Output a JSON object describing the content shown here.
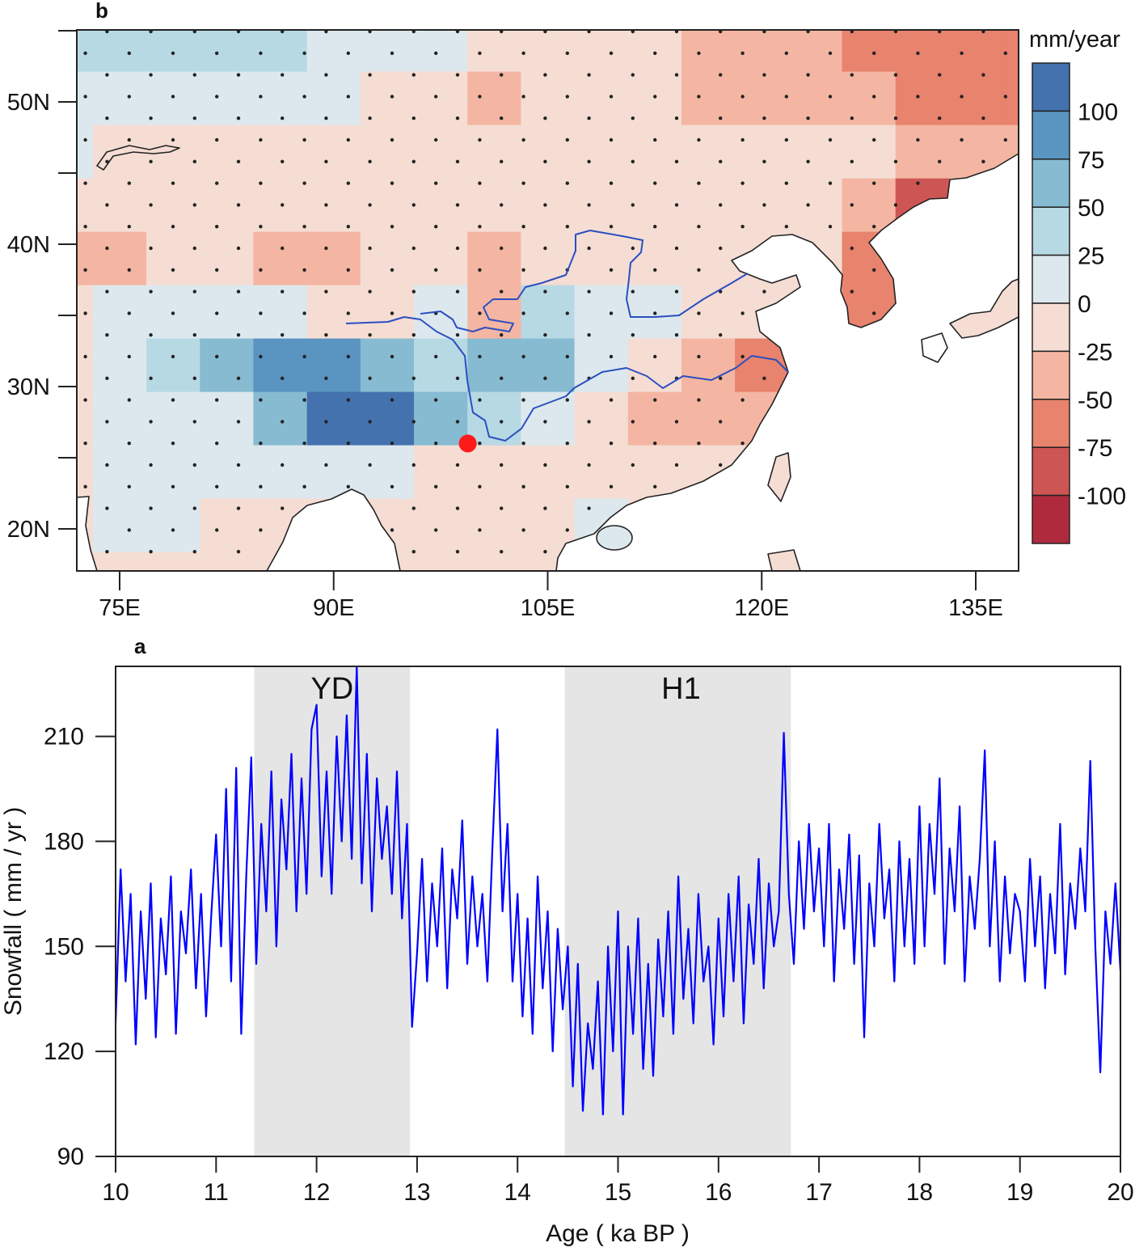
{
  "panels": {
    "map_label": "b",
    "series_label": "a"
  },
  "chart_data": [
    {
      "type": "heatmap",
      "panel": "b",
      "lon_ticks": [
        75,
        90,
        105,
        120,
        135
      ],
      "lon_tick_labels": [
        "75E",
        "90E",
        "105E",
        "120E",
        "135E"
      ],
      "lat_ticks": [
        50,
        40,
        30,
        20
      ],
      "lat_tick_labels": [
        "50N",
        "40N",
        "30N",
        "20N"
      ],
      "lat_minor_ticks": [
        55,
        45,
        35,
        25
      ],
      "extent": {
        "lon": [
          72,
          138
        ],
        "lat": [
          17,
          55
        ]
      },
      "colorbar": {
        "title": "mm/year",
        "tick_labels": [
          "100",
          "75",
          "50",
          "25",
          "0",
          "-25",
          "-50",
          "-75",
          "-100"
        ],
        "colors": [
          "#4372ae",
          "#5a94c1",
          "#86bbd2",
          "#b7d9e4",
          "#dde8ee",
          "#f5ddd4",
          "#f4b6a2",
          "#e8836e",
          "#cd5655",
          "#b02a3e"
        ]
      },
      "grid": {
        "cell_size_deg": 3.75,
        "lon_centers": [
          71.25,
          75,
          78.75,
          82.5,
          86.25,
          90,
          93.75,
          97.5,
          101.25,
          105,
          108.75,
          112.5,
          116.25,
          120,
          123.75,
          127.5,
          131.25,
          135,
          138.75
        ],
        "lat_centers": [
          54.0,
          50.25,
          46.5,
          42.75,
          39.0,
          35.25,
          31.5,
          27.75,
          24.0,
          20.25,
          16.5
        ],
        "values": [
          [
            37,
            37,
            37,
            37,
            37,
            12,
            12,
            12,
            -12,
            -12,
            -12,
            -12,
            -37,
            -37,
            -37,
            -62,
            -62,
            -62,
            -62
          ],
          [
            12,
            12,
            12,
            12,
            12,
            12,
            -12,
            -12,
            -37,
            -12,
            -12,
            -12,
            -37,
            -37,
            -37,
            -37,
            -62,
            -62,
            -62
          ],
          [
            12,
            -12,
            -12,
            -12,
            -12,
            -12,
            -12,
            -12,
            -12,
            -12,
            -12,
            -12,
            -12,
            -12,
            -12,
            -12,
            -37,
            -37,
            -37
          ],
          [
            -12,
            -12,
            -12,
            -12,
            -12,
            -12,
            -12,
            -12,
            -12,
            -12,
            -12,
            -12,
            -12,
            -12,
            -12,
            -37,
            -87,
            null,
            null
          ],
          [
            -37,
            -37,
            -12,
            -12,
            -37,
            -37,
            -12,
            -12,
            -37,
            -12,
            -12,
            -12,
            -12,
            -12,
            -12,
            -62,
            null,
            null,
            null
          ],
          [
            -12,
            12,
            12,
            12,
            12,
            -12,
            -12,
            12,
            -37,
            37,
            12,
            12,
            -12,
            -12,
            -12,
            -62,
            null,
            -37,
            -12
          ],
          [
            -12,
            12,
            37,
            62,
            87,
            87,
            62,
            37,
            62,
            62,
            12,
            -12,
            -37,
            -62,
            null,
            null,
            null,
            null,
            null
          ],
          [
            -12,
            12,
            12,
            12,
            62,
            112,
            112,
            62,
            37,
            12,
            -12,
            -37,
            -37,
            -37,
            null,
            null,
            null,
            null,
            null
          ],
          [
            -12,
            12,
            12,
            12,
            12,
            12,
            12,
            -12,
            -12,
            -12,
            -12,
            -12,
            -12,
            -12,
            null,
            null,
            null,
            null,
            null
          ],
          [
            -12,
            12,
            12,
            -12,
            -12,
            -12,
            -12,
            -12,
            -12,
            -12,
            12,
            -12,
            null,
            null,
            null,
            null,
            null,
            null,
            null
          ],
          [
            -12,
            -12,
            -12,
            -12,
            -12,
            -12,
            -12,
            -12,
            -12,
            -12,
            -12,
            -12,
            -12,
            -12,
            -12,
            null,
            null,
            null,
            null
          ]
        ]
      },
      "stippling": true,
      "site_marker": {
        "lon": 99.4,
        "lat": 26.0,
        "color": "#ff1a1a"
      },
      "river_color": "#2b4fc0"
    },
    {
      "type": "line",
      "panel": "a",
      "xlabel": "Age ( ka BP )",
      "ylabel": "Snowfall ( mm / yr )",
      "xlim": [
        10,
        20
      ],
      "ylim": [
        90,
        230
      ],
      "x_ticks": [
        10,
        11,
        12,
        13,
        14,
        15,
        16,
        17,
        18,
        19,
        20
      ],
      "y_ticks": [
        90,
        120,
        150,
        180,
        210
      ],
      "shaded_intervals": [
        {
          "label": "YD",
          "x": [
            11.38,
            12.93
          ],
          "color": "#e5e5e5"
        },
        {
          "label": "H1",
          "x": [
            14.47,
            16.72
          ],
          "color": "#e5e5e5"
        }
      ],
      "line_color": "#0000ff",
      "series": [
        {
          "x": [
            10,
            10.05,
            10.1,
            10.15,
            10.2,
            10.25,
            10.3,
            10.35,
            10.4,
            10.45,
            10.5,
            10.55,
            10.6,
            10.65,
            10.7,
            10.75,
            10.8,
            10.85,
            10.9,
            10.95,
            11,
            11.05,
            11.1,
            11.15,
            11.2,
            11.25,
            11.3,
            11.35,
            11.4,
            11.45,
            11.5,
            11.55,
            11.6,
            11.65,
            11.7,
            11.75,
            11.8,
            11.85,
            11.9,
            11.95,
            12,
            12.05,
            12.1,
            12.15,
            12.2,
            12.25,
            12.3,
            12.35,
            12.4,
            12.45,
            12.5,
            12.55,
            12.6,
            12.65,
            12.7,
            12.75,
            12.8,
            12.85,
            12.9,
            12.95,
            13,
            13.05,
            13.1,
            13.15,
            13.2,
            13.25,
            13.3,
            13.35,
            13.4,
            13.45,
            13.5,
            13.55,
            13.6,
            13.65,
            13.7,
            13.75,
            13.8,
            13.85,
            13.9,
            13.95,
            14,
            14.05,
            14.1,
            14.15,
            14.2,
            14.25,
            14.3,
            14.35,
            14.4,
            14.45,
            14.5,
            14.55,
            14.6,
            14.65,
            14.7,
            14.75,
            14.8,
            14.85,
            14.9,
            14.95,
            15,
            15.05,
            15.1,
            15.15,
            15.2,
            15.25,
            15.3,
            15.35,
            15.4,
            15.45,
            15.5,
            15.55,
            15.6,
            15.65,
            15.7,
            15.75,
            15.8,
            15.85,
            15.9,
            15.95,
            16,
            16.05,
            16.1,
            16.15,
            16.2,
            16.25,
            16.3,
            16.35,
            16.4,
            16.45,
            16.5,
            16.55,
            16.6,
            16.65,
            16.7,
            16.75,
            16.8,
            16.85,
            16.9,
            16.95,
            17,
            17.05,
            17.1,
            17.15,
            17.2,
            17.25,
            17.3,
            17.35,
            17.4,
            17.45,
            17.5,
            17.55,
            17.6,
            17.65,
            17.7,
            17.75,
            17.8,
            17.85,
            17.9,
            17.95,
            18,
            18.05,
            18.1,
            18.15,
            18.2,
            18.25,
            18.3,
            18.35,
            18.4,
            18.45,
            18.5,
            18.55,
            18.6,
            18.65,
            18.7,
            18.75,
            18.8,
            18.85,
            18.9,
            18.95,
            19,
            19.05,
            19.1,
            19.15,
            19.2,
            19.25,
            19.3,
            19.35,
            19.4,
            19.45,
            19.5,
            19.55,
            19.6,
            19.65,
            19.7,
            19.75,
            19.8,
            19.85,
            19.9,
            19.95,
            20
          ],
          "y": [
            128,
            172,
            140,
            165,
            122,
            160,
            135,
            168,
            124,
            158,
            142,
            170,
            125,
            160,
            148,
            172,
            138,
            165,
            130,
            158,
            182,
            150,
            195,
            140,
            201,
            125,
            170,
            204,
            145,
            185,
            160,
            200,
            150,
            192,
            172,
            205,
            160,
            198,
            165,
            212,
            219,
            170,
            200,
            165,
            210,
            180,
            216,
            175,
            230,
            168,
            205,
            160,
            198,
            175,
            190,
            165,
            200,
            158,
            185,
            127,
            148,
            175,
            140,
            168,
            150,
            178,
            138,
            172,
            158,
            186,
            145,
            170,
            150,
            165,
            140,
            178,
            212,
            160,
            185,
            140,
            165,
            130,
            158,
            125,
            170,
            138,
            160,
            120,
            155,
            132,
            150,
            110,
            145,
            103,
            128,
            115,
            140,
            102,
            150,
            120,
            160,
            102,
            150,
            125,
            158,
            115,
            145,
            113,
            152,
            130,
            160,
            125,
            170,
            135,
            155,
            128,
            165,
            140,
            150,
            122,
            158,
            130,
            165,
            140,
            170,
            128,
            162,
            145,
            175,
            138,
            168,
            150,
            160,
            211,
            165,
            145,
            180,
            155,
            185,
            160,
            178,
            150,
            185,
            140,
            172,
            155,
            182,
            145,
            176,
            124,
            168,
            150,
            185,
            158,
            172,
            140,
            180,
            150,
            175,
            145,
            190,
            150,
            185,
            165,
            198,
            145,
            178,
            160,
            190,
            140,
            170,
            155,
            175,
            206,
            150,
            180,
            140,
            170,
            148,
            165,
            160,
            140,
            175,
            150,
            170,
            138,
            165,
            148,
            185,
            142,
            168,
            155,
            178,
            160,
            203,
            150,
            114,
            160,
            145,
            168,
            143
          ]
        }
      ]
    }
  ]
}
